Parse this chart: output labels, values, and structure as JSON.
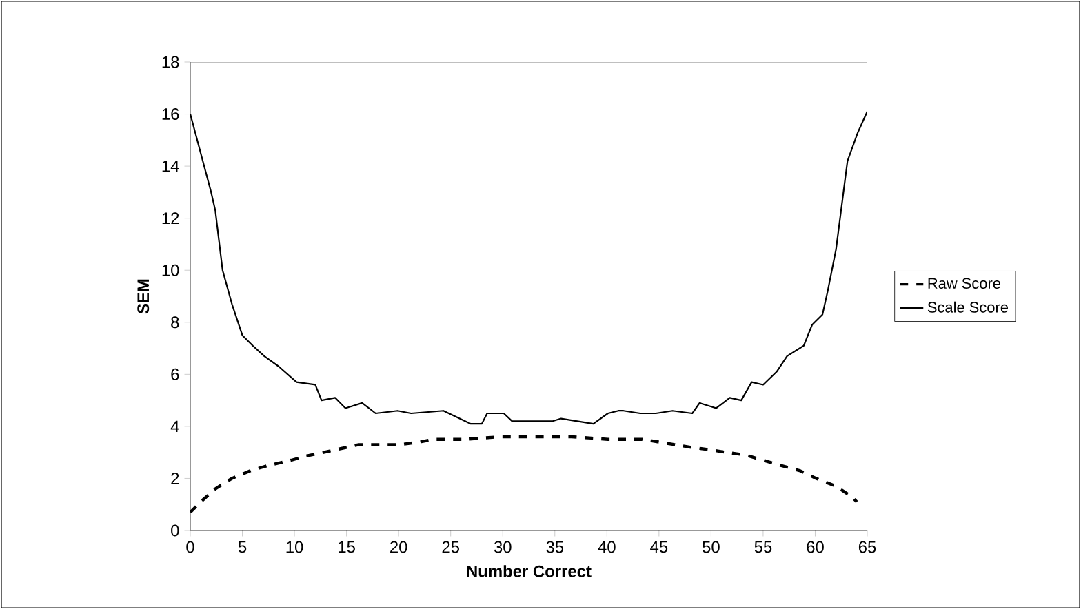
{
  "chart_data": {
    "type": "line",
    "xlabel": "Number Correct",
    "ylabel": "SEM",
    "xlim": [
      0,
      65
    ],
    "xticks": [
      0,
      5,
      10,
      15,
      20,
      25,
      30,
      35,
      40,
      45,
      50,
      55,
      60,
      65
    ],
    "ylim": [
      0,
      18
    ],
    "yticks": [
      0,
      2,
      4,
      6,
      8,
      10,
      12,
      14,
      16,
      18
    ],
    "grid": false,
    "legend": "right",
    "marker": "none",
    "series": [
      {
        "name": "Raw Score",
        "color": "#000000",
        "line_style": "dashed",
        "x": [
          0,
          1,
          2.4,
          4,
          5.8,
          7.5,
          9.7,
          11,
          12.8,
          14.5,
          16.2,
          18,
          20.2,
          22,
          23.3,
          25,
          26.4,
          28,
          29.8,
          31.5,
          33.2,
          35,
          36.6,
          38.5,
          40.1,
          42,
          43.4,
          45,
          46.5,
          48,
          49.9,
          51.5,
          53.3,
          55,
          56.7,
          58.5,
          60.1,
          62,
          63.5,
          64
        ],
        "values": [
          0.7,
          1.1,
          1.6,
          2.0,
          2.3,
          2.5,
          2.7,
          2.85,
          3.0,
          3.15,
          3.3,
          3.3,
          3.3,
          3.4,
          3.5,
          3.5,
          3.5,
          3.55,
          3.6,
          3.6,
          3.6,
          3.6,
          3.6,
          3.55,
          3.5,
          3.5,
          3.5,
          3.4,
          3.3,
          3.2,
          3.1,
          3.0,
          2.9,
          2.7,
          2.5,
          2.3,
          2.0,
          1.7,
          1.3,
          1.1
        ]
      },
      {
        "name": "Scale Score",
        "color": "#000000",
        "line_style": "solid",
        "x": [
          0,
          1,
          2,
          2.4,
          3.1,
          4,
          5,
          6,
          7.1,
          8.5,
          10.2,
          12,
          12.6,
          13.9,
          14.9,
          16.5,
          17.8,
          19.9,
          21.2,
          24.3,
          26.9,
          28,
          28.5,
          30.1,
          30.9,
          34.8,
          35.6,
          38.7,
          40.1,
          41.1,
          41.6,
          43.2,
          44.7,
          46.3,
          48.2,
          48.9,
          50.5,
          51.8,
          52.9,
          53.9,
          55,
          56.3,
          57.3,
          58.9,
          59.7,
          60.7,
          61.2,
          62,
          63.1,
          64.1,
          65
        ],
        "values": [
          16,
          14.5,
          13,
          12.3,
          10.0,
          8.7,
          7.5,
          7.1,
          6.7,
          6.3,
          5.7,
          5.6,
          5.0,
          5.1,
          4.7,
          4.9,
          4.5,
          4.6,
          4.5,
          4.6,
          4.1,
          4.1,
          4.5,
          4.5,
          4.2,
          4.2,
          4.3,
          4.1,
          4.5,
          4.6,
          4.6,
          4.5,
          4.5,
          4.6,
          4.5,
          4.9,
          4.7,
          5.1,
          5.0,
          5.7,
          5.6,
          6.1,
          6.7,
          7.1,
          7.9,
          8.3,
          9.2,
          10.8,
          14.2,
          15.3,
          16.1
        ]
      }
    ]
  }
}
